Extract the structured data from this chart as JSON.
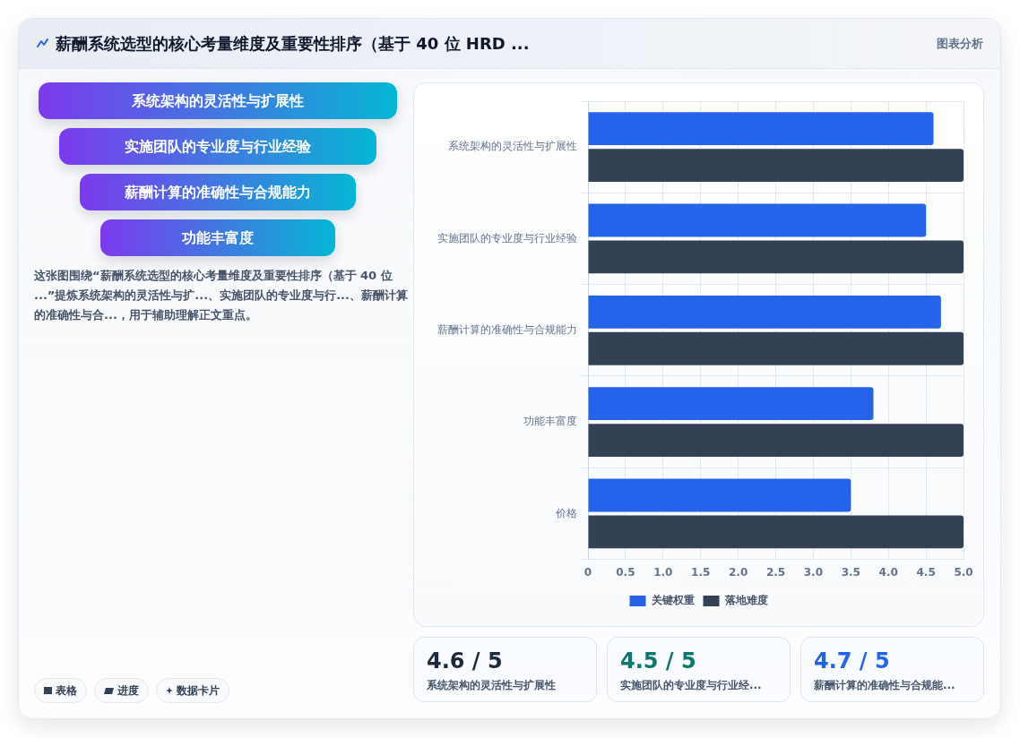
{
  "chart_data": [
    {
      "type": "other",
      "title": "薪酬系统选型的核心考量维度及重要性排序（基于 40 位 HRD ...",
      "categories": [
        "系统架构的灵活性与扩展性",
        "实施团队的专业度与行业经验",
        "薪酬计算的准确性与合规能力",
        "功能丰富度"
      ],
      "annotations": [
        "图表分析",
        "这张图围绕“薪酬系统选型的核心考量维度及重要性排序（基于 40 位 ...”提炼系统架构的灵活性与扩...、实施团队的专业度与行...、薪酬计算的准确性与合...，用于辅助理解正文重点。",
        "表格",
        "进度",
        "数据卡片"
      ]
    },
    {
      "type": "bar",
      "orientation": "horizontal",
      "categories": [
        "系统架构的灵活性与扩展性",
        "实施团队的专业度与行业经验",
        "薪酬计算的准确性与合规能力",
        "功能丰富度",
        "价格"
      ],
      "series": [
        {
          "name": "关键权重",
          "color": "#2563eb",
          "values": [
            4.6,
            4.5,
            4.7,
            3.8,
            3.5
          ]
        },
        {
          "name": "落地难度",
          "color": "#334155",
          "values": [
            5,
            5,
            5,
            5,
            5
          ]
        }
      ],
      "xlim": [
        0,
        5
      ],
      "xticks": [
        0,
        0.5,
        {
          "value": 1,
          "label": "1.0"
        },
        1.5,
        {
          "value": 2,
          "label": "2.0"
        },
        2.5,
        {
          "value": 3,
          "label": "3.0"
        },
        3.5,
        {
          "value": 4,
          "label": "4.0"
        },
        4.5,
        {
          "value": 5,
          "label": "5.0"
        }
      ],
      "grid": true,
      "legend": "bottom"
    },
    {
      "type": "other",
      "categories": [
        "系统架构的灵活性与扩展性",
        "实施团队的专业度与行业经...",
        "薪酬计算的准确性与合规能..."
      ],
      "value_labels": [
        "4.6 / 5",
        "4.5 / 5",
        "4.7 / 5"
      ]
    }
  ]
}
